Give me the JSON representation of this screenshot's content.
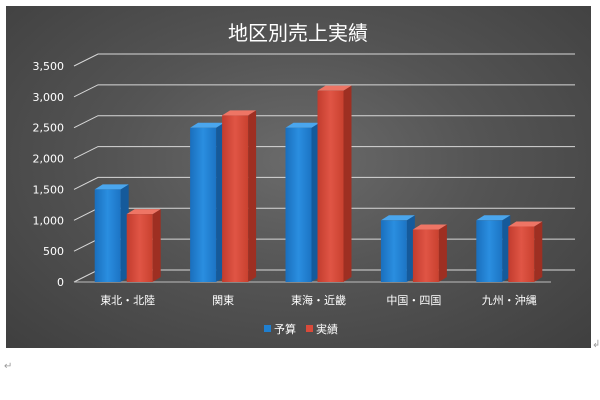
{
  "chart_data": {
    "type": "bar",
    "title": "地区別売上実績",
    "categories": [
      "東北・北陸",
      "関東",
      "東海・近畿",
      "中国・四国",
      "九州・沖縄"
    ],
    "series": [
      {
        "name": "予算",
        "values": [
          1500,
          2500,
          2500,
          1000,
          1000
        ],
        "color": "#1f7fd0"
      },
      {
        "name": "実績",
        "values": [
          1100,
          2700,
          3100,
          850,
          900
        ],
        "color": "#d94a3a"
      }
    ],
    "ylim": [
      0,
      3500
    ],
    "yticks": [
      0,
      500,
      1000,
      1500,
      2000,
      2500,
      3000,
      3500
    ],
    "ytick_labels": [
      "0",
      "500",
      "1,000",
      "1,500",
      "2,000",
      "2,500",
      "3,000",
      "3,500"
    ],
    "grid": true,
    "legend": "bottom"
  },
  "document": {
    "return_mark": "↵",
    "anchor_mark": "↲"
  }
}
